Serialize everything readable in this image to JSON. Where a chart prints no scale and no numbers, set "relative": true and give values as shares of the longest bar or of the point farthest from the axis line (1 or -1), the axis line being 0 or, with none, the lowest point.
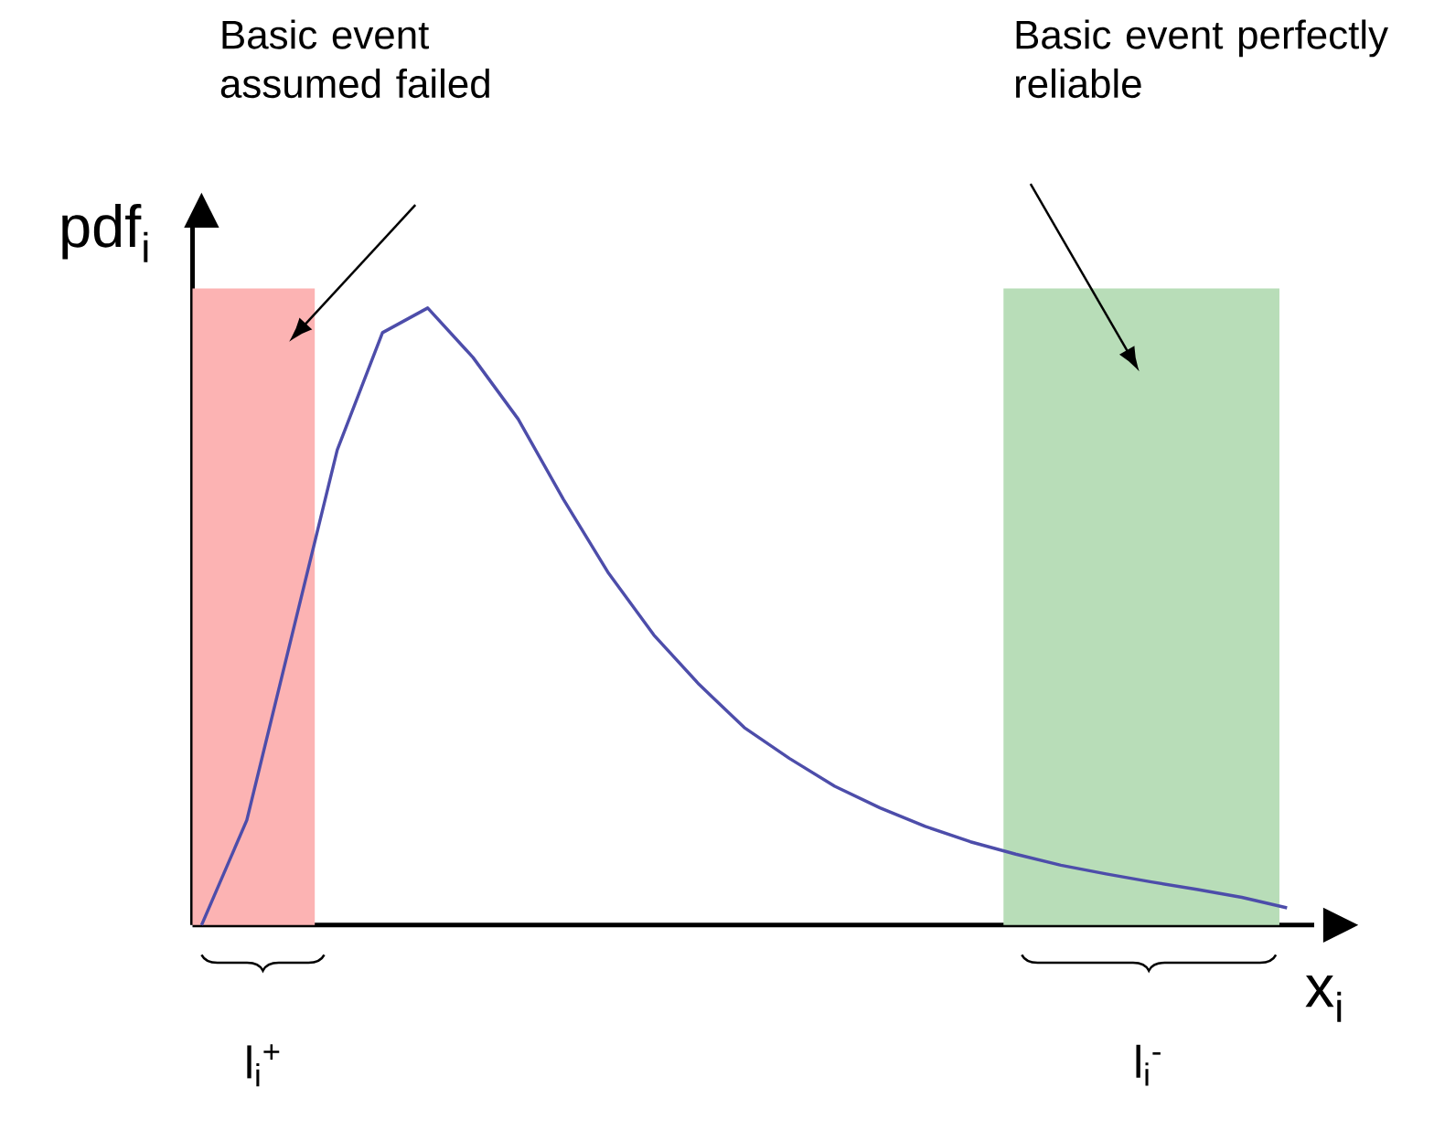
{
  "chart_data": {
    "type": "line",
    "relative": true,
    "xlabel": "x$_{i}$",
    "ylabel": "pdf$_{i}$",
    "categories": [
      null,
      null,
      null,
      null,
      null,
      null,
      null,
      null,
      null,
      null,
      null,
      null,
      null,
      null,
      null,
      null,
      null,
      null,
      null,
      null,
      null,
      null,
      null,
      null,
      null
    ],
    "series": [
      {
        "color": "#4d4daa",
        "values": [
          0,
          0.17,
          0.47,
          0.77,
          0.96,
          1,
          0.92,
          0.82,
          0.69,
          0.57,
          0.47,
          0.39,
          0.32,
          0.27,
          0.225,
          0.19,
          0.16,
          0.135,
          0.115,
          0.097,
          0.083,
          0.07,
          0.058,
          0.045,
          0.028
        ]
      }
    ],
    "annotations": [
      "Basic event assumed failed",
      "Basic event perfectly reliable",
      "l$_{i}$$^{+}$",
      "l$_{i}$$^{-}$"
    ]
  }
}
